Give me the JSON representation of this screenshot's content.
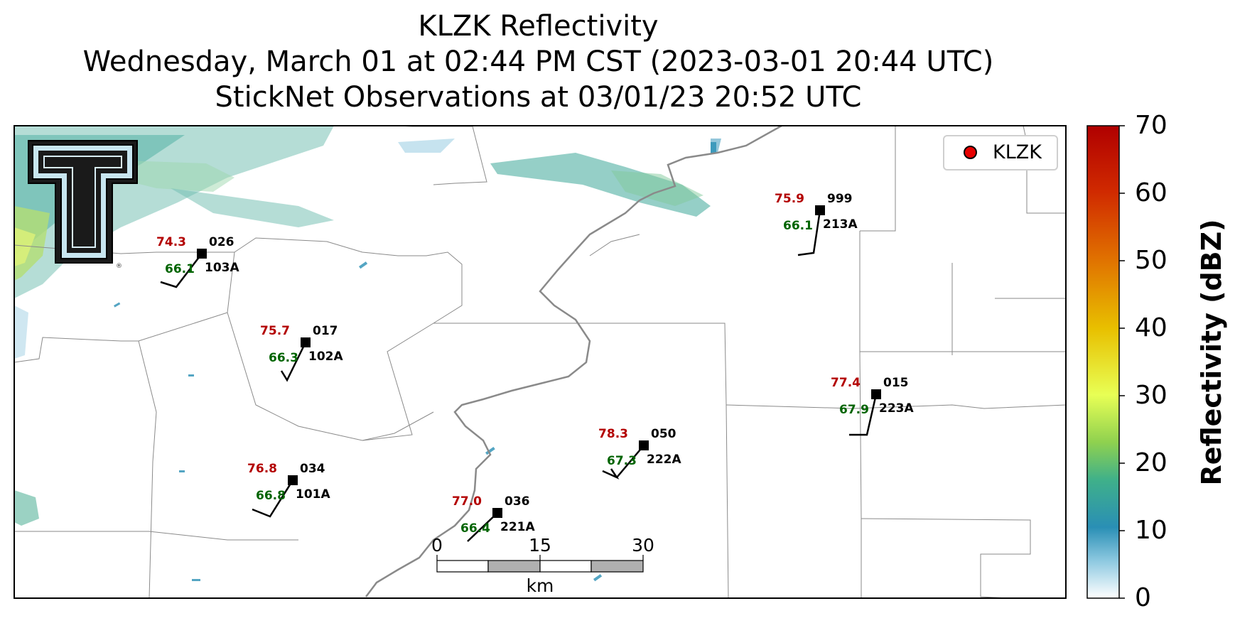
{
  "title": {
    "line1": "KLZK Reflectivity",
    "line2": "Wednesday, March 01 at 02:44 PM CST (2023-03-01 20:44 UTC)",
    "line3": "StickNet Observations at 03/01/23 20:52 UTC"
  },
  "legend": {
    "label": "KLZK",
    "marker_color": "#e60000"
  },
  "colorbar": {
    "label": "Reflectivity (dBZ)",
    "ticks": [
      "0",
      "10",
      "20",
      "30",
      "40",
      "50",
      "60",
      "70"
    ],
    "range": [
      0,
      70
    ],
    "colors": [
      "#ffffff",
      "#2a8fb5",
      "#8fd14f",
      "#e8e84a",
      "#e8b800",
      "#e05a00",
      "#b00000"
    ]
  },
  "scalebar": {
    "ticks": [
      "0",
      "15",
      "30"
    ],
    "unit": "km"
  },
  "logo": {
    "description": "Texas Tech Double-T logo"
  },
  "stations": [
    {
      "id": "103A",
      "temp": "74.3",
      "dew": "66.1",
      "wind_dir": "026"
    },
    {
      "id": "102A",
      "temp": "75.7",
      "dew": "66.3",
      "wind_dir": "017"
    },
    {
      "id": "101A",
      "temp": "76.8",
      "dew": "66.8",
      "wind_dir": "034"
    },
    {
      "id": "221A",
      "temp": "77.0",
      "dew": "66.4",
      "wind_dir": "036"
    },
    {
      "id": "222A",
      "temp": "78.3",
      "dew": "67.3",
      "wind_dir": "050"
    },
    {
      "id": "213A",
      "temp": "75.9",
      "dew": "66.1",
      "wind_dir": "999"
    },
    {
      "id": "223A",
      "temp": "77.4",
      "dew": "67.9",
      "wind_dir": "015"
    }
  ]
}
